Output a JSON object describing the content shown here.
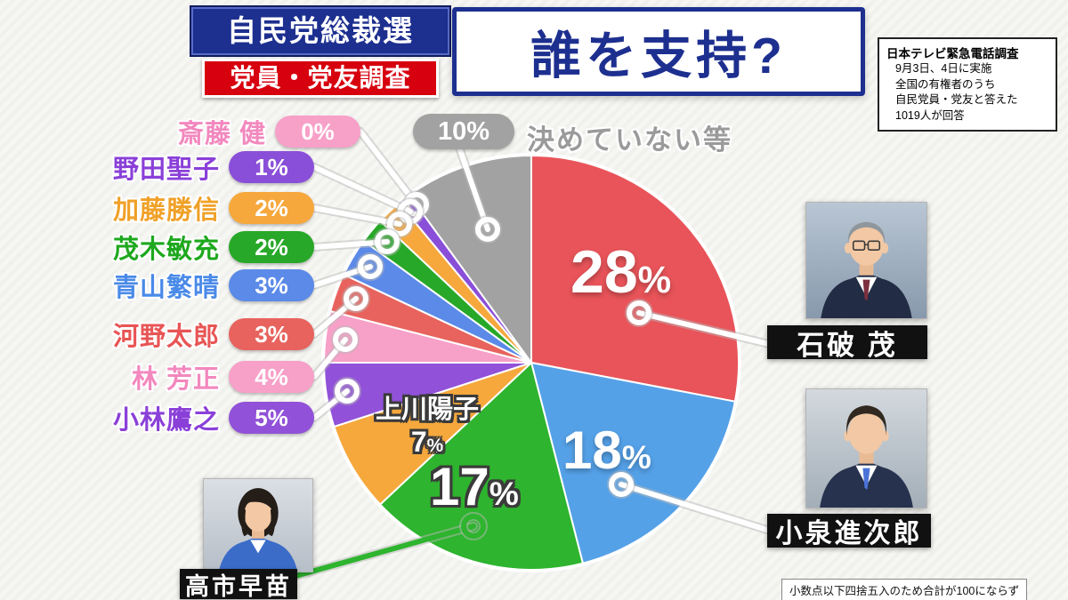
{
  "header": {
    "topic_top": "自民党総裁選",
    "topic_bottom": "党員・党友調査",
    "title": "誰を支持?",
    "survey_note": {
      "title": "日本テレビ緊急電話調査",
      "lines": [
        "9月3日、4日に実施",
        "全国の有権者のうち",
        "自民党員・党友と答えた",
        "1019人が回答"
      ]
    }
  },
  "chart_data": {
    "type": "pie",
    "title": "誰を支持? 自民党総裁選 党員・党友調査",
    "unit": "%",
    "start_angle_deg": 0,
    "direction": "clockwise",
    "segments": [
      {
        "label": "石破 茂",
        "value": 28,
        "color": "#e85459"
      },
      {
        "label": "小泉進次郎",
        "value": 18,
        "color": "#55a1e8"
      },
      {
        "label": "高市早苗",
        "value": 17,
        "color": "#2eb42e"
      },
      {
        "label": "上川陽子",
        "value": 7,
        "color": "#f6a83c"
      },
      {
        "label": "小林鷹之",
        "value": 5,
        "color": "#9151d8"
      },
      {
        "label": "林 芳正",
        "value": 4,
        "color": "#f7a0c8"
      },
      {
        "label": "河野太郎",
        "value": 3,
        "color": "#e8635e"
      },
      {
        "label": "青山繁晴",
        "value": 3,
        "color": "#5b8ae8"
      },
      {
        "label": "茂木敏充",
        "value": 2,
        "color": "#28a828"
      },
      {
        "label": "加藤勝信",
        "value": 2,
        "color": "#f6a83c"
      },
      {
        "label": "野田聖子",
        "value": 1,
        "color": "#8a4fd8"
      },
      {
        "label": "斎藤 健",
        "value": 0,
        "color": "#f7a0c8"
      },
      {
        "label": "決めていない等",
        "value": 10,
        "color": "#a2a2a2"
      }
    ],
    "footnote": "小数点以下四捨五入のため合計が100にならず"
  },
  "left_labels": [
    {
      "name": "斎藤 健",
      "pct": "0%",
      "color": "#f7a0c8",
      "name_color": "#f288be"
    },
    {
      "name": "野田聖子",
      "pct": "1%",
      "color": "#8a4fd8",
      "name_color": "#8a40d8"
    },
    {
      "name": "加藤勝信",
      "pct": "2%",
      "color": "#f6a83c",
      "name_color": "#f0a128"
    },
    {
      "name": "茂木敏充",
      "pct": "2%",
      "color": "#28a828",
      "name_color": "#1ea81e"
    },
    {
      "name": "青山繁晴",
      "pct": "3%",
      "color": "#5b8ae8",
      "name_color": "#4a8ae8"
    },
    {
      "name": "河野太郎",
      "pct": "3%",
      "color": "#e8635e",
      "name_color": "#e85555"
    },
    {
      "name": "林 芳正",
      "pct": "4%",
      "color": "#f7a0c8",
      "name_color": "#f288be"
    },
    {
      "name": "小林鷹之",
      "pct": "5%",
      "color": "#9151d8",
      "name_color": "#8a40d8"
    }
  ],
  "undecided": {
    "pct": "10%",
    "label": "決めていない等",
    "color": "#a2a2a2",
    "text_color": "#9a9a9a"
  },
  "slice_labels": {
    "ishiba": {
      "num": "28",
      "sign": "%"
    },
    "koizumi": {
      "num": "18",
      "sign": "%"
    },
    "takaichi": {
      "num": "17",
      "sign": "%"
    },
    "kamikawa": {
      "name": "上川陽子",
      "num": "7",
      "sign": "%"
    }
  },
  "photo_plates": {
    "ishiba": "石破 茂",
    "koizumi": "小泉進次郎",
    "takaichi": "高市早苗"
  },
  "footnote": "小数点以下四捨五入のため合計が100にならず"
}
